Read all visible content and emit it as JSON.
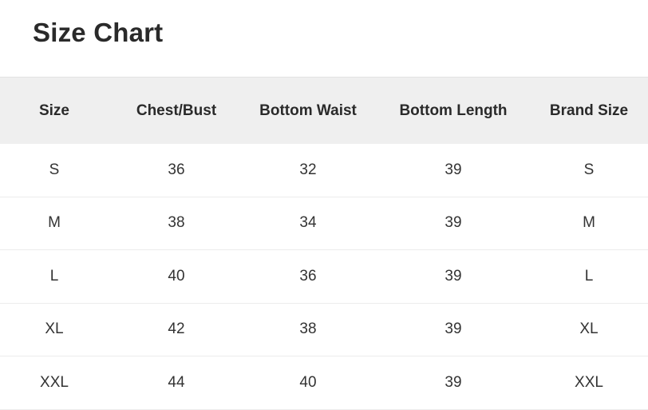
{
  "title": "Size Chart",
  "table": {
    "headers": [
      "Size",
      "Chest/Bust",
      "Bottom Waist",
      "Bottom Length",
      "Brand Size"
    ],
    "rows": [
      [
        "S",
        "36",
        "32",
        "39",
        "S"
      ],
      [
        "M",
        "38",
        "34",
        "39",
        "M"
      ],
      [
        "L",
        "40",
        "36",
        "39",
        "L"
      ],
      [
        "XL",
        "42",
        "38",
        "39",
        "XL"
      ],
      [
        "XXL",
        "44",
        "40",
        "39",
        "XXL"
      ]
    ]
  },
  "colors": {
    "header_bg": "#efefef",
    "divider": "#ececec"
  }
}
